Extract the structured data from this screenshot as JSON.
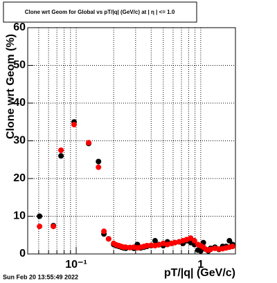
{
  "chart_data": {
    "type": "scatter",
    "title": "Clone wrt Geom for Global vs pT/|q| (GeV/c) at | η | <= 1.0",
    "x_label": "pT/|q| (GeV/c)",
    "y_label": "Clone wrt Geom (%)",
    "timestamp": "Sun Feb 20 13:55:49 2022",
    "x_log": true,
    "grid": true,
    "xlim": [
      0.0408,
      1.9
    ],
    "ylim": [
      0,
      60
    ],
    "xticks": [
      {
        "value": 0.1,
        "label": "10⁻¹"
      },
      1
    ],
    "x_minor_ticks": [
      0.05,
      0.06,
      0.07,
      0.08,
      0.09,
      0.2,
      0.3,
      0.4,
      0.5,
      0.6,
      0.7,
      0.8,
      0.9
    ],
    "yticks": [
      0,
      10,
      20,
      30,
      40,
      50,
      60
    ],
    "x": [
      0.0508,
      0.0656,
      0.0755,
      0.0962,
      0.126,
      0.151,
      0.167,
      0.182,
      0.2,
      0.21,
      0.22,
      0.23,
      0.24,
      0.25,
      0.27,
      0.29,
      0.31,
      0.33,
      0.35,
      0.37,
      0.4,
      0.43,
      0.46,
      0.5,
      0.54,
      0.58,
      0.62,
      0.67,
      0.72,
      0.77,
      0.83,
      0.89,
      0.95,
      1.0,
      1.05,
      1.1,
      1.15,
      1.2,
      1.3,
      1.4,
      1.5,
      1.6,
      1.7,
      1.8
    ],
    "series": [
      {
        "color": "#000000",
        "values": [
          10,
          7.5,
          26,
          35,
          29.3,
          24.5,
          5.3,
          4,
          2.5,
          2.2,
          2,
          1.8,
          1.6,
          1.5,
          1.7,
          1.5,
          2.5,
          1.6,
          1.8,
          2,
          2.2,
          3.5,
          2.5,
          2.2,
          3.2,
          2.8,
          3,
          3.2,
          2.8,
          3.5,
          3,
          2.5,
          1,
          0.8,
          3,
          1.2,
          0.8,
          1.5,
          1.8,
          1.2,
          2,
          2,
          3.5,
          2.5
        ]
      },
      {
        "color": "#ff0000",
        "values": [
          7.3,
          7.3,
          27.5,
          34.3,
          29.5,
          23,
          6,
          4,
          2.8,
          2.4,
          2.2,
          2,
          1.8,
          1.8,
          1.7,
          1.8,
          1.6,
          1.8,
          2,
          2.2,
          2.3,
          2.2,
          2.4,
          2.8,
          2.5,
          2.8,
          3,
          3.2,
          3.5,
          3.8,
          4.2,
          3.5,
          2.5,
          2.2,
          1.8,
          1.2,
          1,
          1.2,
          1.5,
          1.3,
          1.4,
          1.6,
          1.8,
          2
        ]
      }
    ]
  }
}
